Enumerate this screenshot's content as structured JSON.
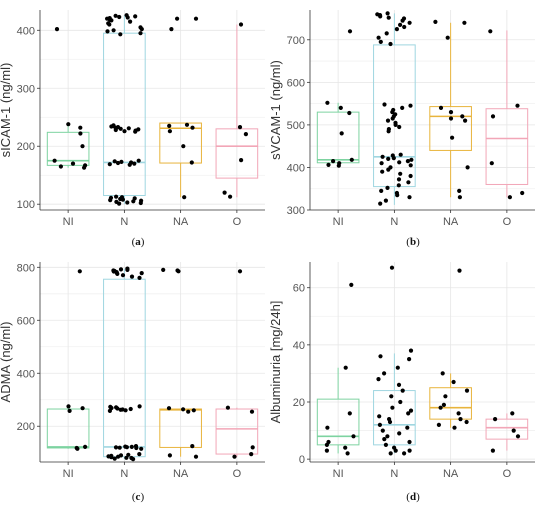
{
  "chart_data": [
    {
      "type": "box",
      "panel_label": "(a)",
      "ylabel": "sICAM-1 (ng/ml)",
      "categories": [
        "NI",
        "N",
        "NA",
        "O"
      ],
      "ylim": [
        90,
        435
      ],
      "yticks": [
        100,
        200,
        300,
        400
      ],
      "grid": true,
      "boxes": [
        {
          "category": "NI",
          "color": "#7dd3a0",
          "q1": 167,
          "median": 175,
          "q3": 224,
          "whisker_low": 163,
          "whisker_high": 238,
          "points": [
            402,
            238,
            232,
            222,
            200,
            175,
            170,
            167,
            165,
            163
          ]
        },
        {
          "category": "N",
          "color": "#9fd6e0",
          "q1": 115,
          "median": 172,
          "q3": 395,
          "whisker_low": 100,
          "whisker_high": 426,
          "points": [
            426,
            425,
            424,
            423,
            422,
            421,
            420,
            418,
            417,
            415,
            412,
            410,
            405,
            402,
            400,
            398,
            395,
            393,
            236,
            235,
            234,
            233,
            232,
            231,
            230,
            229,
            228,
            227,
            226,
            225,
            175,
            174,
            173,
            172,
            171,
            170,
            169,
            168,
            113,
            112,
            111,
            110,
            109,
            108,
            107,
            106,
            105,
            104,
            103,
            102,
            101
          ]
        },
        {
          "category": "NA",
          "color": "#e8b43c",
          "q1": 171,
          "median": 231,
          "q3": 240,
          "whisker_low": 112,
          "whisker_high": 240,
          "points": [
            420,
            420,
            402,
            237,
            235,
            232,
            226,
            200,
            172,
            112
          ]
        },
        {
          "category": "O",
          "color": "#f2a6b7",
          "q1": 145,
          "median": 200,
          "q3": 230,
          "whisker_low": 112,
          "whisker_high": 410,
          "points": [
            410,
            233,
            221,
            176,
            120,
            113
          ]
        }
      ]
    },
    {
      "type": "box",
      "panel_label": "(b)",
      "ylabel": "sVCAM-1 (ng/ml)",
      "categories": [
        "NI",
        "N",
        "NA",
        "O"
      ],
      "ylim": [
        300,
        770
      ],
      "yticks": [
        300,
        400,
        500,
        600,
        700
      ],
      "grid": true,
      "boxes": [
        {
          "category": "NI",
          "color": "#7dd3a0",
          "q1": 411,
          "median": 418,
          "q3": 530,
          "whisker_low": 404,
          "whisker_high": 552,
          "points": [
            720,
            552,
            540,
            528,
            480,
            418,
            415,
            410,
            406,
            404
          ]
        },
        {
          "category": "N",
          "color": "#9fd6e0",
          "q1": 355,
          "median": 425,
          "q3": 688,
          "whisker_low": 312,
          "whisker_high": 762,
          "points": [
            762,
            760,
            758,
            755,
            752,
            750,
            745,
            740,
            735,
            730,
            725,
            715,
            705,
            695,
            690,
            548,
            545,
            540,
            535,
            530,
            525,
            520,
            515,
            510,
            505,
            500,
            495,
            490,
            485,
            430,
            428,
            425,
            422,
            420,
            418,
            415,
            412,
            410,
            405,
            400,
            395,
            390,
            385,
            380,
            372,
            365,
            358,
            352,
            345,
            340,
            335,
            330,
            322,
            315
          ]
        },
        {
          "category": "NA",
          "color": "#e8b43c",
          "q1": 440,
          "median": 520,
          "q3": 543,
          "whisker_low": 330,
          "whisker_high": 740,
          "points": [
            742,
            740,
            705,
            540,
            530,
            520,
            515,
            510,
            470,
            400,
            345,
            330
          ]
        },
        {
          "category": "O",
          "color": "#f2a6b7",
          "q1": 360,
          "median": 468,
          "q3": 538,
          "whisker_low": 330,
          "whisker_high": 722,
          "points": [
            720,
            545,
            520,
            410,
            340,
            330
          ]
        }
      ]
    },
    {
      "type": "box",
      "panel_label": "(c)",
      "ylabel": "ADMA (ng/ml)",
      "categories": [
        "NI",
        "N",
        "NA",
        "O"
      ],
      "ylim": [
        65,
        820
      ],
      "yticks": [
        200,
        400,
        600,
        800
      ],
      "grid": true,
      "boxes": [
        {
          "category": "NI",
          "color": "#7dd3a0",
          "q1": 118,
          "median": 122,
          "q3": 265,
          "whisker_low": 115,
          "whisker_high": 275,
          "points": [
            785,
            275,
            268,
            258,
            122,
            118,
            115
          ]
        },
        {
          "category": "N",
          "color": "#9fd6e0",
          "q1": 85,
          "median": 122,
          "q3": 755,
          "whisker_low": 75,
          "whisker_high": 795,
          "points": [
            795,
            792,
            790,
            788,
            786,
            784,
            782,
            780,
            778,
            775,
            770,
            765,
            760,
            275,
            273,
            271,
            269,
            267,
            265,
            263,
            262,
            260,
            258,
            125,
            123,
            122,
            121,
            120,
            119,
            118,
            115,
            95,
            92,
            90,
            88,
            86,
            85,
            83,
            81,
            80,
            78,
            76
          ]
        },
        {
          "category": "NA",
          "color": "#e8b43c",
          "q1": 120,
          "median": 262,
          "q3": 265,
          "whisker_low": 85,
          "whisker_high": 265,
          "points": [
            790,
            788,
            785,
            268,
            264,
            260,
            255,
            125,
            90,
            85
          ]
        },
        {
          "category": "O",
          "color": "#f2a6b7",
          "q1": 95,
          "median": 190,
          "q3": 265,
          "whisker_low": 85,
          "whisker_high": 270,
          "points": [
            785,
            270,
            255,
            120,
            95,
            85
          ]
        }
      ]
    },
    {
      "type": "box",
      "panel_label": "(d)",
      "ylabel": "Albuminuria [mg/24h]",
      "categories": [
        "NI",
        "N",
        "NA",
        "O"
      ],
      "ylim": [
        -1,
        69
      ],
      "yticks": [
        0,
        20,
        40,
        60
      ],
      "grid": true,
      "boxes": [
        {
          "category": "NI",
          "color": "#7dd3a0",
          "q1": 5,
          "median": 8,
          "q3": 21,
          "whisker_low": 2,
          "whisker_high": 32,
          "points": [
            61,
            32,
            16,
            11,
            8,
            6,
            5,
            4,
            3,
            2
          ]
        },
        {
          "category": "N",
          "color": "#9fd6e0",
          "q1": 5,
          "median": 12,
          "q3": 24,
          "whisker_low": 2,
          "whisker_high": 37,
          "points": [
            67,
            38,
            36,
            35,
            32,
            30,
            28,
            26,
            24,
            22,
            20,
            18,
            17,
            16,
            15,
            14,
            13,
            12,
            11,
            10,
            9,
            8,
            7,
            6,
            5,
            4,
            3,
            3,
            2,
            2
          ]
        },
        {
          "category": "NA",
          "color": "#e8b43c",
          "q1": 14,
          "median": 18,
          "q3": 25,
          "whisker_low": 11,
          "whisker_high": 30,
          "points": [
            66,
            30,
            27,
            24,
            22,
            19,
            18,
            16,
            14,
            13,
            12,
            11
          ]
        },
        {
          "category": "O",
          "color": "#f2a6b7",
          "q1": 7,
          "median": 11,
          "q3": 14,
          "whisker_low": 3,
          "whisker_high": 16,
          "points": [
            16,
            14,
            10,
            8,
            3
          ]
        }
      ]
    }
  ]
}
